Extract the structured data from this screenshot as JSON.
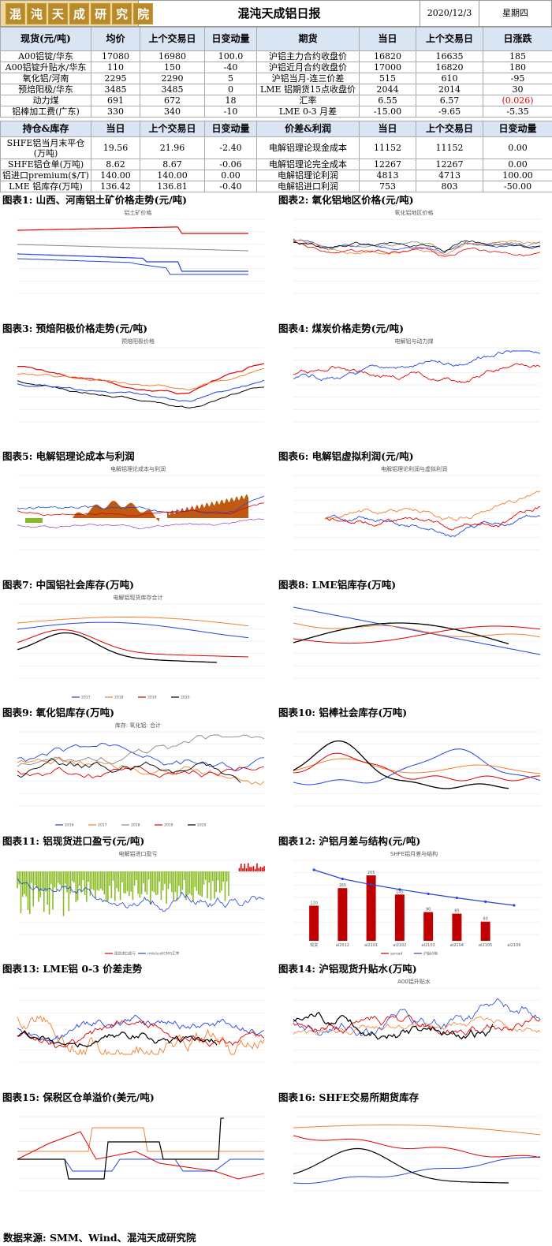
{
  "header": {
    "logo_text": [
      "混",
      "沌",
      "天",
      "成",
      "研",
      "究",
      "院"
    ],
    "title": "混沌天成铝日报",
    "date": "2020/12/3",
    "weekday": "星期四"
  },
  "table1": {
    "headers": [
      "现货(元/吨)",
      "均价",
      "上个交易日",
      "日变动量",
      "期货",
      "当日",
      "上个交易日",
      "日涨跌"
    ],
    "rows": [
      [
        "A00铝锭/华东",
        "17080",
        "16980",
        "100.0",
        "沪铝主力合约收盘价",
        "16820",
        "16635",
        "185"
      ],
      [
        "A00铝锭升贴水/华东",
        "110",
        "150",
        "-40",
        "沪铝近月合约收盘价",
        "17000",
        "16820",
        "180"
      ],
      [
        "氧化铝/河南",
        "2295",
        "2290",
        "5",
        "沪铝当月-连三价差",
        "515",
        "610",
        "-95"
      ],
      [
        "预焙阳极/华东",
        "3485",
        "3485",
        "0",
        "LME 铝期货15点收盘价",
        "2044",
        "2014",
        "30"
      ],
      [
        "动力煤",
        "691",
        "672",
        "18",
        "汇率",
        "6.55",
        "6.57",
        "(0.026)"
      ],
      [
        "铝棒加工费(广东)",
        "330",
        "340",
        "-10",
        "LME 0-3 月差",
        "-15.00",
        "-9.65",
        "-5.35"
      ]
    ]
  },
  "table2": {
    "headers": [
      "持仓&库存",
      "当日",
      "上个交易日",
      "日变动量",
      "价差&利润",
      "当日",
      "上个交易日",
      "日变动量"
    ],
    "rows": [
      [
        "SHFE铝当月末平仓(万吨)",
        "19.56",
        "21.96",
        "-2.40",
        "电解铝理论现金成本",
        "11152",
        "11152",
        "0.00"
      ],
      [
        "SHFE铝仓单(万吨)",
        "8.62",
        "8.67",
        "-0.06",
        "电解铝理论完全成本",
        "12267",
        "12267",
        "0.00"
      ],
      [
        "铝进口premium($/T)",
        "140.00",
        "140.00",
        "0.00",
        "电解铝理论利润",
        "4813",
        "4713",
        "100.00"
      ],
      [
        "LME 铝库存(万吨)",
        "136.42",
        "136.81",
        "-0.40",
        "电解铝进口利润",
        "753",
        "803",
        "-50.00"
      ]
    ]
  },
  "charts": [
    {
      "caption": "图表1: 山西、河南铝土矿价格走势(元/吨)",
      "title": "铝土矿价格"
    },
    {
      "caption": "图表2: 氧化铝地区价格(元/吨)",
      "title": "氧化铝地区价格"
    },
    {
      "caption": "图表3: 预焙阳极价格走势(元/吨)",
      "title": "预焙阳极价格"
    },
    {
      "caption": "图表4: 煤炭价格走势(元/吨)",
      "title": "电解铝与动力煤"
    },
    {
      "caption": "图表5: 电解铝理论成本与利润",
      "title": "电解铝理论成本与利润"
    },
    {
      "caption": "图表6: 电解铝虚拟利润(元/吨)",
      "title": "电解铝理论利润与虚拟利润"
    },
    {
      "caption": "图表7: 中国铝社会库存(万吨)",
      "title": "电解铝现货库存合计"
    },
    {
      "caption": "图表8: LME铝库存(万吨)",
      "title": ""
    },
    {
      "caption": "图表9: 氧化铝库存(万吨)",
      "title": "库存: 氧化铝: 合计"
    },
    {
      "caption": "图表10: 铝棒社会库存(万吨)",
      "title": ""
    },
    {
      "caption": "图表11: 铝现货进口盈亏(元/吨)",
      "title": "电解铝进口盈亏"
    },
    {
      "caption": "图表12: 沪铝月差与结构(元/吨)",
      "title": "SHFE铝月差与结构"
    },
    {
      "caption": "图表13: LME铝 0-3 价差走势",
      "title": ""
    },
    {
      "caption": "图表14: 沪铝现货升贴水(万吨)",
      "title": "A00铝升贴水"
    },
    {
      "caption": "图表15: 保税区仓单溢价(美元/吨)",
      "title": ""
    },
    {
      "caption": "图表16: SHFE交易所期货库存",
      "title": ""
    }
  ],
  "chart_data": [
    {
      "type": "bar",
      "title": "SHFE铝月差与结构",
      "categories": [
        "现货",
        "al2012",
        "al2101",
        "al2102",
        "al2103",
        "al2104",
        "al2105",
        "al2106"
      ],
      "values": [
        110,
        165,
        205,
        145,
        90,
        85,
        60,
        null
      ],
      "series_names": [
        "spread",
        "沪铝价格"
      ]
    }
  ],
  "legends": {
    "c7": [
      "2017",
      "2018",
      "2019",
      "2020"
    ],
    "c9": [
      "2016",
      "2017",
      "2018",
      "2019",
      "2020"
    ],
    "c11": [
      "现货进口盈亏",
      "rmb/usd(CNY)汇率"
    ],
    "c12": [
      "spread",
      "沪铝价格"
    ]
  },
  "colors": {
    "red": "#e00000",
    "blue": "#2244dd",
    "orange": "#f08030",
    "black": "#000000",
    "gray": "#888888",
    "green": "#88bb22",
    "brown": "#c05a10",
    "purple": "#8844cc"
  },
  "footer": "数据来源: SMM、Wind、混沌天成研究院"
}
